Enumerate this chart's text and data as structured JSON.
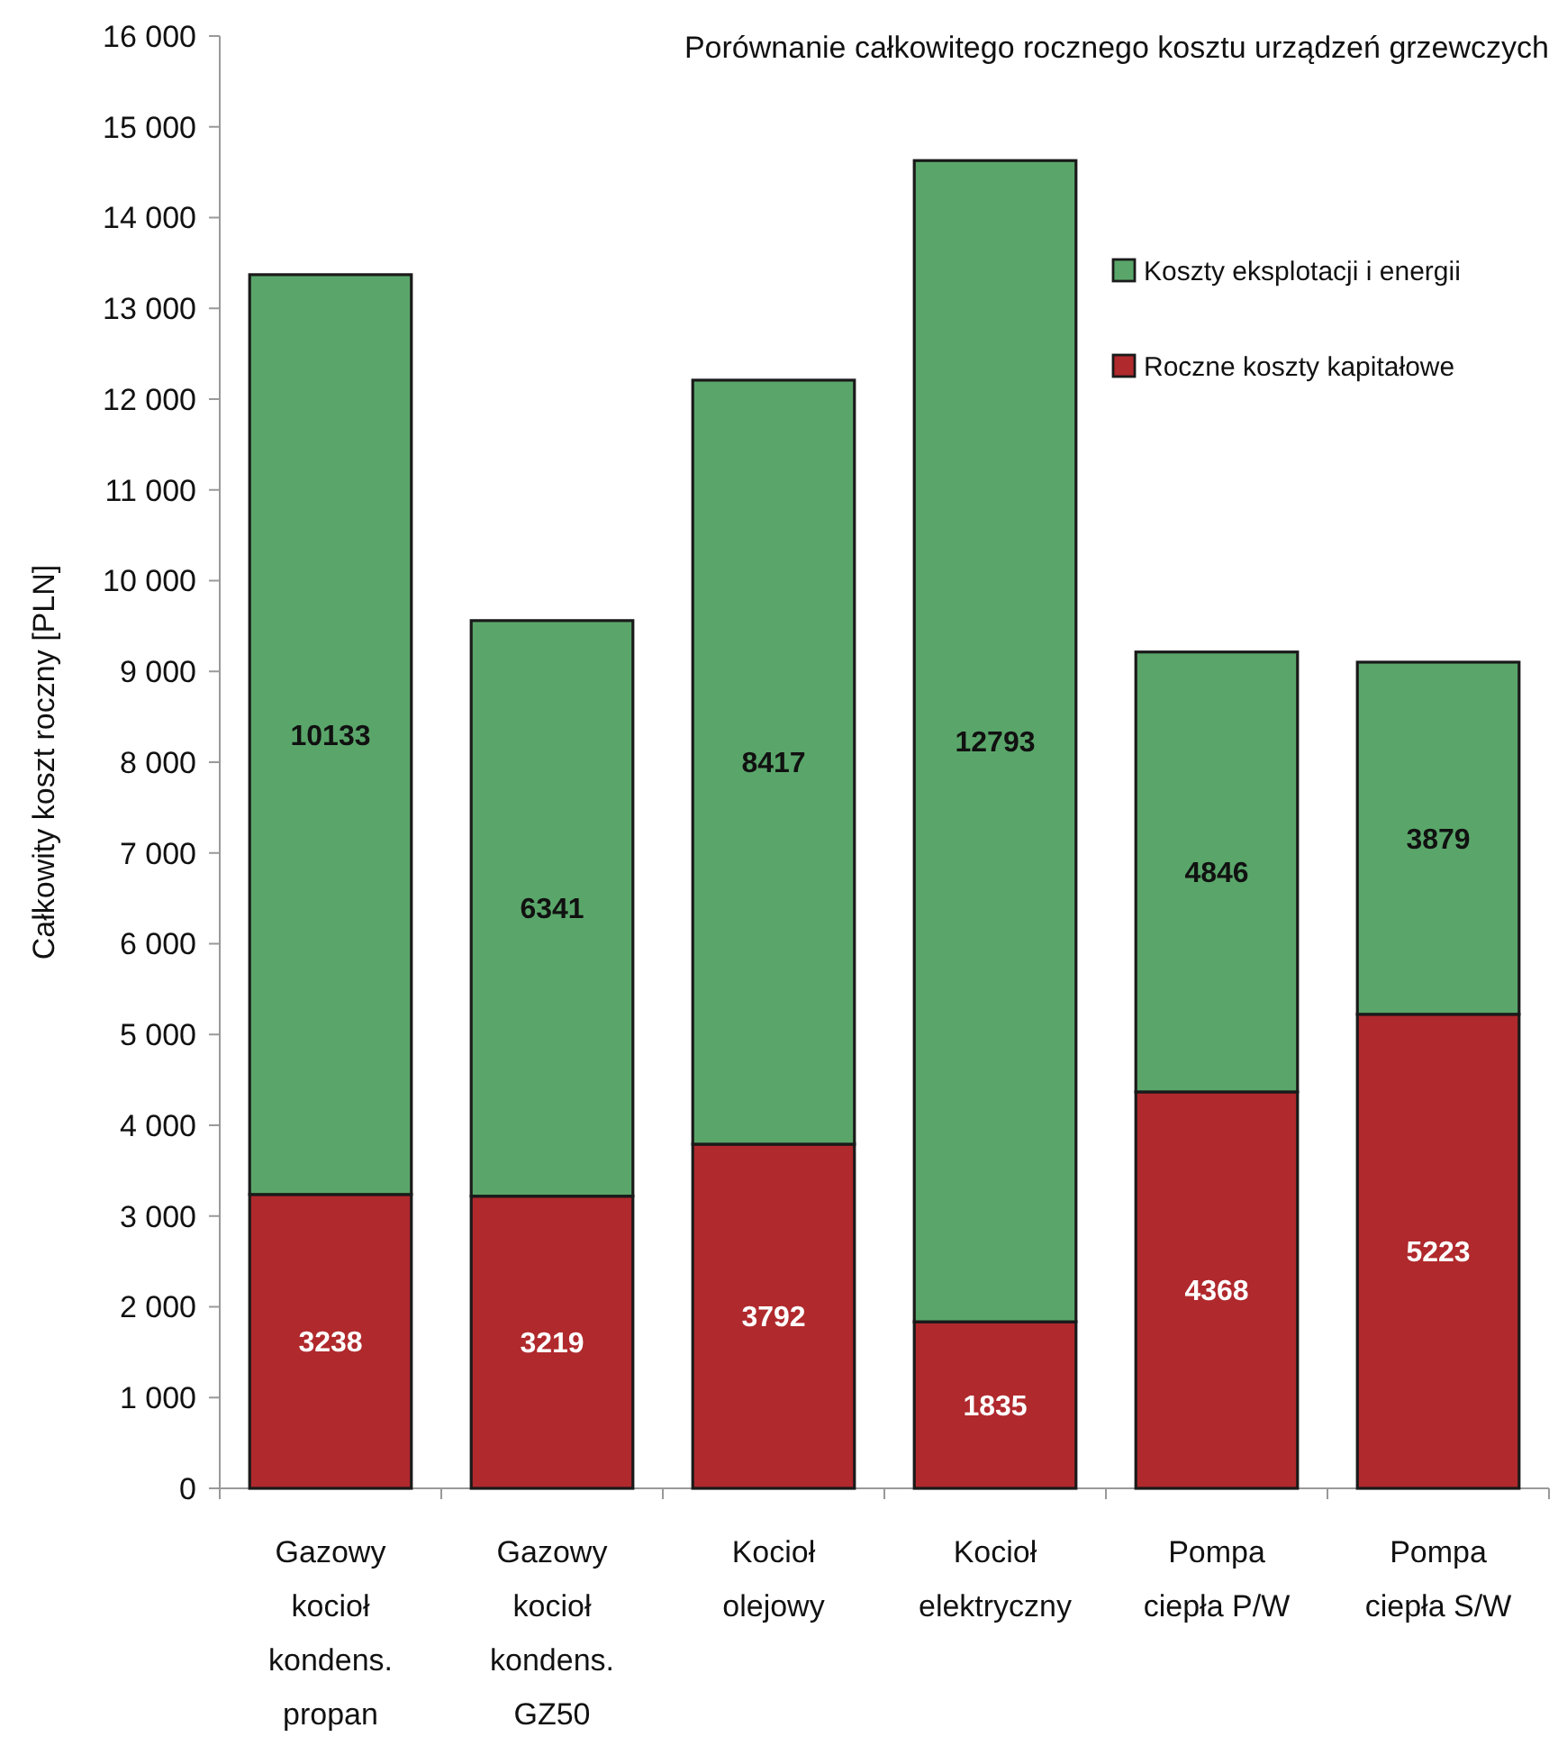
{
  "chart_data": {
    "type": "bar",
    "title": "Porównanie całkowitego rocznego kosztu urządzeń grzewczych",
    "ylabel": "Całkowity koszt roczny [PLN]",
    "categories": [
      "Gazowy kocioł kondens. propan",
      "Gazowy kocioł kondens. GZ50",
      "Kocioł olejowy",
      "Kocioł elektryczny",
      "Pompa ciepła P/W",
      "Pompa ciepła S/W"
    ],
    "series": [
      {
        "name": "Roczne koszty kapitałowe",
        "color": "#b0292d",
        "values": [
          3238,
          3219,
          3792,
          1835,
          4368,
          5223
        ]
      },
      {
        "name": "Koszty eksplotacji i energii",
        "color": "#5aa66a",
        "values": [
          10133,
          6341,
          8417,
          12793,
          4846,
          3879
        ]
      }
    ],
    "stacked": true,
    "ylim": [
      0,
      16000
    ],
    "yticks": [
      0,
      {
        "value": 1000,
        "label": "1 000"
      },
      {
        "value": 2000,
        "label": "2 000"
      },
      {
        "value": 3000,
        "label": "3 000"
      },
      {
        "value": 4000,
        "label": "4 000"
      },
      {
        "value": 5000,
        "label": "5 000"
      },
      {
        "value": 6000,
        "label": "6 000"
      },
      {
        "value": 7000,
        "label": "7 000"
      },
      {
        "value": 8000,
        "label": "8 000"
      },
      {
        "value": 9000,
        "label": "9 000"
      },
      {
        "value": 10000,
        "label": "10 000"
      },
      {
        "value": 11000,
        "label": "11 000"
      },
      {
        "value": 12000,
        "label": "12 000"
      },
      {
        "value": 13000,
        "label": "13 000"
      },
      {
        "value": 14000,
        "label": "14 000"
      },
      {
        "value": 15000,
        "label": "15 000"
      },
      {
        "value": 16000,
        "label": "16 000"
      }
    ],
    "data_labels": true,
    "legend": "top right",
    "grid": false
  }
}
